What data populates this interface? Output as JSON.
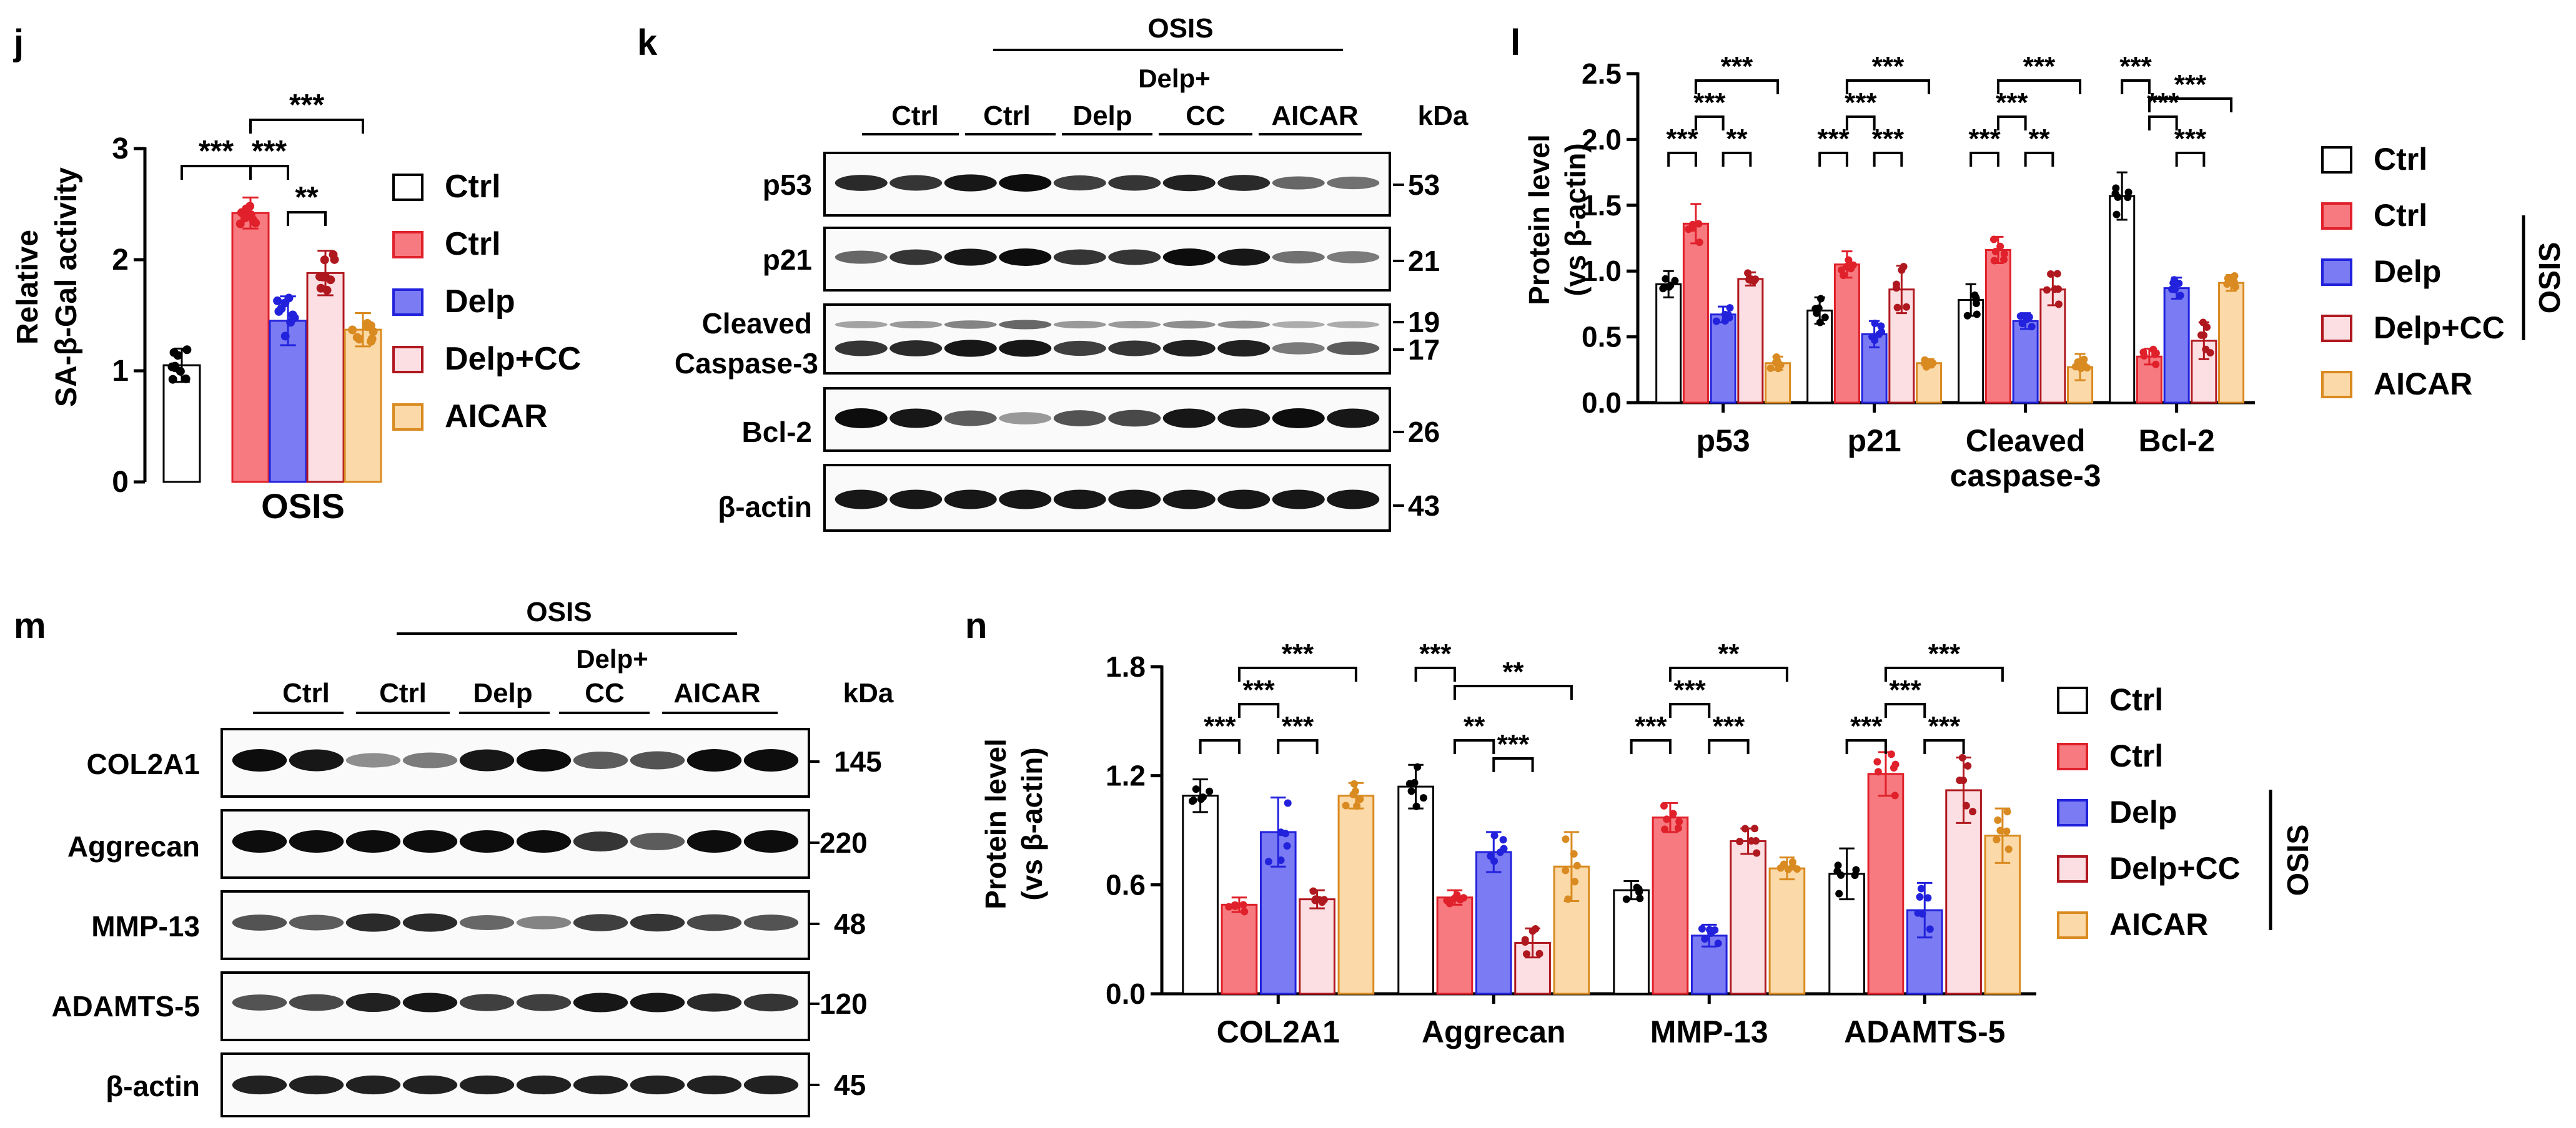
{
  "panel_letters": {
    "j": "j",
    "k": "k",
    "l": "l",
    "m": "m",
    "n": "n"
  },
  "colors": {
    "ctrl": "#ffffff",
    "osis_ctrl": "#f77a80",
    "delp": "#7b7bf3",
    "delp_cc": "#fbdfe3",
    "aicar": "#fbd9a8",
    "ctrl_pt": "#000000",
    "osis_ctrl_pt": "#e0202a",
    "delp_pt": "#2222dd",
    "delp_cc_pt": "#b0181f",
    "aicar_pt": "#d98a20"
  },
  "legend": {
    "j": [
      "Ctrl",
      "Ctrl",
      "Delp",
      "Delp+CC",
      "AICAR"
    ],
    "l": [
      "Ctrl",
      "Ctrl",
      "Delp",
      "Delp+CC",
      "AICAR"
    ],
    "n": [
      "Ctrl",
      "Ctrl",
      "Delp",
      "Delp+CC",
      "AICAR"
    ]
  },
  "blot_k": {
    "osis_label": "OSIS",
    "kda_label": "kDa",
    "lanes": [
      "Ctrl",
      "Ctrl",
      "Delp",
      "Delp+",
      "CC",
      "AICAR"
    ],
    "rows": [
      "p53",
      "p21",
      "Cleaved",
      "Caspase-3",
      "Bcl-2",
      "β-actin"
    ],
    "kda": [
      "53",
      "21",
      "19",
      "17",
      "26",
      "43"
    ]
  },
  "blot_m": {
    "osis_label": "OSIS",
    "kda_label": "kDa",
    "lanes": [
      "Ctrl",
      "Ctrl",
      "Delp",
      "Delp+",
      "CC",
      "AICAR"
    ],
    "rows": [
      "COL2A1",
      "Aggrecan",
      "MMP-13",
      "ADAMTS-5",
      "β-actin"
    ],
    "kda": [
      "145",
      "220",
      "48",
      "120",
      "45"
    ]
  },
  "chart_data": [
    {
      "panel": "j",
      "type": "bar",
      "title": "",
      "xlabel": "OSIS",
      "ylabel": "Relative SA-β-Gal activity",
      "ylabel_lines": [
        "Relative",
        "SA-β-Gal activity"
      ],
      "ylim": [
        0,
        3
      ],
      "yticks": [
        "0",
        "1",
        "2",
        "3"
      ],
      "categories": [
        "Ctrl",
        "Ctrl",
        "Delp",
        "Delp+CC",
        "AICAR"
      ],
      "values": [
        1.05,
        2.42,
        1.45,
        1.88,
        1.37
      ],
      "errors": [
        0.15,
        0.14,
        0.22,
        0.2,
        0.15
      ],
      "significance": [
        {
          "from": 0,
          "to": 1,
          "label": "***"
        },
        {
          "from": 1,
          "to": 2,
          "label": "***"
        },
        {
          "from": 2,
          "to": 3,
          "label": "**"
        },
        {
          "from": 1,
          "to": 4,
          "label": "***"
        }
      ]
    },
    {
      "panel": "l",
      "type": "bar",
      "title": "",
      "xlabel": "",
      "ylabel": "Protein level (vs β-actin)",
      "ylabel_lines": [
        "Protein level",
        "(vs β-actin)"
      ],
      "ylim": [
        0,
        2.5
      ],
      "yticks": [
        "0.0",
        "0.5",
        "1.0",
        "1.5",
        "2.0",
        "2.5"
      ],
      "categories": [
        "p53",
        "p21",
        "Cleaved caspase-3",
        "Bcl-2"
      ],
      "category_lines": [
        [
          "p53"
        ],
        [
          "p21"
        ],
        [
          "Cleaved",
          "caspase-3"
        ],
        [
          "Bcl-2"
        ]
      ],
      "series": [
        {
          "name": "Ctrl",
          "values": [
            0.9,
            0.7,
            0.78,
            1.57
          ],
          "errors": [
            0.1,
            0.1,
            0.12,
            0.18
          ]
        },
        {
          "name": "Ctrl",
          "values": [
            1.36,
            1.05,
            1.16,
            0.35
          ],
          "errors": [
            0.15,
            0.1,
            0.1,
            0.06
          ]
        },
        {
          "name": "Delp",
          "values": [
            0.67,
            0.52,
            0.62,
            0.87
          ],
          "errors": [
            0.06,
            0.1,
            0.06,
            0.08
          ]
        },
        {
          "name": "Delp+CC",
          "values": [
            0.94,
            0.86,
            0.86,
            0.47
          ],
          "errors": [
            0.05,
            0.18,
            0.12,
            0.14
          ]
        },
        {
          "name": "AICAR",
          "values": [
            0.3,
            0.3,
            0.27,
            0.91
          ],
          "errors": [
            0.05,
            0.03,
            0.1,
            0.06
          ]
        }
      ],
      "significance": [
        {
          "group": 0,
          "from": 0,
          "to": 1,
          "label": "***",
          "level": 0
        },
        {
          "group": 0,
          "from": 1,
          "to": 2,
          "label": "***",
          "level": 1
        },
        {
          "group": 0,
          "from": 2,
          "to": 3,
          "label": "**",
          "level": 0
        },
        {
          "group": 0,
          "from": 1,
          "to": 4,
          "label": "***",
          "level": 2
        },
        {
          "group": 1,
          "from": 0,
          "to": 1,
          "label": "***",
          "level": 0
        },
        {
          "group": 1,
          "from": 1,
          "to": 2,
          "label": "***",
          "level": 1
        },
        {
          "group": 1,
          "from": 2,
          "to": 3,
          "label": "***",
          "level": 0
        },
        {
          "group": 1,
          "from": 1,
          "to": 4,
          "label": "***",
          "level": 2
        },
        {
          "group": 2,
          "from": 0,
          "to": 1,
          "label": "***",
          "level": 0
        },
        {
          "group": 2,
          "from": 1,
          "to": 2,
          "label": "***",
          "level": 1
        },
        {
          "group": 2,
          "from": 2,
          "to": 3,
          "label": "**",
          "level": 0
        },
        {
          "group": 2,
          "from": 1,
          "to": 4,
          "label": "***",
          "level": 2
        },
        {
          "group": 3,
          "from": 0,
          "to": 1,
          "label": "***",
          "level": 2
        },
        {
          "group": 3,
          "from": 1,
          "to": 2,
          "label": "***",
          "level": 1
        },
        {
          "group": 3,
          "from": 2,
          "to": 3,
          "label": "***",
          "level": 0
        },
        {
          "group": 3,
          "from": 1,
          "to": 4,
          "label": "***",
          "level": 1.5
        }
      ],
      "osis_label": "OSIS"
    },
    {
      "panel": "n",
      "type": "bar",
      "title": "",
      "xlabel": "",
      "ylabel": "Protein level (vs β-actin)",
      "ylabel_lines": [
        "Protein level",
        "(vs β-actin)"
      ],
      "ylim": [
        0,
        1.8
      ],
      "yticks": [
        "0.0",
        "0.6",
        "1.2",
        "1.8"
      ],
      "categories": [
        "COL2A1",
        "Aggrecan",
        "MMP-13",
        "ADAMTS-5"
      ],
      "category_lines": [
        [
          "COL2A1"
        ],
        [
          "Aggrecan"
        ],
        [
          "MMP-13"
        ],
        [
          "ADAMTS-5"
        ]
      ],
      "series": [
        {
          "name": "Ctrl",
          "values": [
            1.09,
            1.14,
            0.57,
            0.66
          ],
          "errors": [
            0.09,
            0.12,
            0.05,
            0.14
          ]
        },
        {
          "name": "Ctrl",
          "values": [
            0.49,
            0.53,
            0.97,
            1.21
          ],
          "errors": [
            0.04,
            0.04,
            0.08,
            0.12
          ]
        },
        {
          "name": "Delp",
          "values": [
            0.89,
            0.78,
            0.32,
            0.46
          ],
          "errors": [
            0.19,
            0.11,
            0.06,
            0.15
          ]
        },
        {
          "name": "Delp+CC",
          "values": [
            0.52,
            0.28,
            0.84,
            1.12
          ],
          "errors": [
            0.05,
            0.08,
            0.07,
            0.18
          ]
        },
        {
          "name": "AICAR",
          "values": [
            1.09,
            0.7,
            0.69,
            0.87
          ],
          "errors": [
            0.07,
            0.19,
            0.06,
            0.15
          ]
        }
      ],
      "significance": [
        {
          "group": 0,
          "from": 0,
          "to": 1,
          "label": "***",
          "level": 0
        },
        {
          "group": 0,
          "from": 1,
          "to": 2,
          "label": "***",
          "level": 1
        },
        {
          "group": 0,
          "from": 2,
          "to": 3,
          "label": "***",
          "level": 0
        },
        {
          "group": 0,
          "from": 1,
          "to": 4,
          "label": "***",
          "level": 2
        },
        {
          "group": 1,
          "from": 0,
          "to": 1,
          "label": "***",
          "level": 2
        },
        {
          "group": 1,
          "from": 1,
          "to": 2,
          "label": "**",
          "level": 0
        },
        {
          "group": 1,
          "from": 2,
          "to": 3,
          "label": "***",
          "level": -0.5
        },
        {
          "group": 1,
          "from": 1,
          "to": 4,
          "label": "**",
          "level": 1.5
        },
        {
          "group": 2,
          "from": 0,
          "to": 1,
          "label": "***",
          "level": 0
        },
        {
          "group": 2,
          "from": 1,
          "to": 2,
          "label": "***",
          "level": 1
        },
        {
          "group": 2,
          "from": 2,
          "to": 3,
          "label": "***",
          "level": 0
        },
        {
          "group": 2,
          "from": 1,
          "to": 4,
          "label": "**",
          "level": 2
        },
        {
          "group": 3,
          "from": 0,
          "to": 1,
          "label": "***",
          "level": 0
        },
        {
          "group": 3,
          "from": 1,
          "to": 2,
          "label": "***",
          "level": 1
        },
        {
          "group": 3,
          "from": 2,
          "to": 3,
          "label": "***",
          "level": 0
        },
        {
          "group": 3,
          "from": 1,
          "to": 4,
          "label": "***",
          "level": 2
        }
      ],
      "osis_label": "OSIS"
    }
  ]
}
